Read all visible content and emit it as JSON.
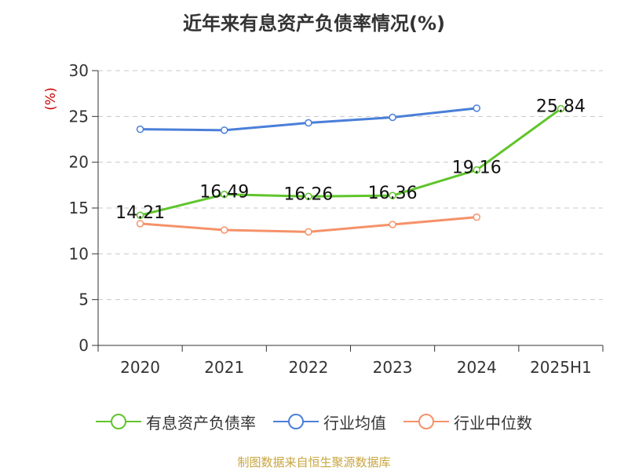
{
  "chart_data": {
    "type": "line",
    "title": "近年来有息资产负债率情况(%)",
    "ylabel": "(%)",
    "xlabel": "",
    "categories": [
      "2020",
      "2021",
      "2022",
      "2023",
      "2024",
      "2025H1"
    ],
    "ylim": [
      0,
      30
    ],
    "yticks": [
      0,
      5,
      10,
      15,
      20,
      25,
      30
    ],
    "grid": true,
    "legend_position": "bottom",
    "series": [
      {
        "name": "有息资产负债率",
        "color": "#5fc52b",
        "values": [
          14.21,
          16.49,
          16.26,
          16.36,
          19.16,
          25.84
        ],
        "labels": [
          "14.21",
          "16.49",
          "16.26",
          "16.36",
          "19.16",
          "25.84"
        ]
      },
      {
        "name": "行业均值",
        "color": "#4a7fd8",
        "values": [
          23.6,
          23.5,
          24.3,
          24.9,
          25.9,
          null
        ]
      },
      {
        "name": "行业中位数",
        "color": "#f5926a",
        "values": [
          13.3,
          12.6,
          12.4,
          13.2,
          14.0,
          null
        ]
      }
    ]
  },
  "source": "制图数据来自恒生聚源数据库"
}
